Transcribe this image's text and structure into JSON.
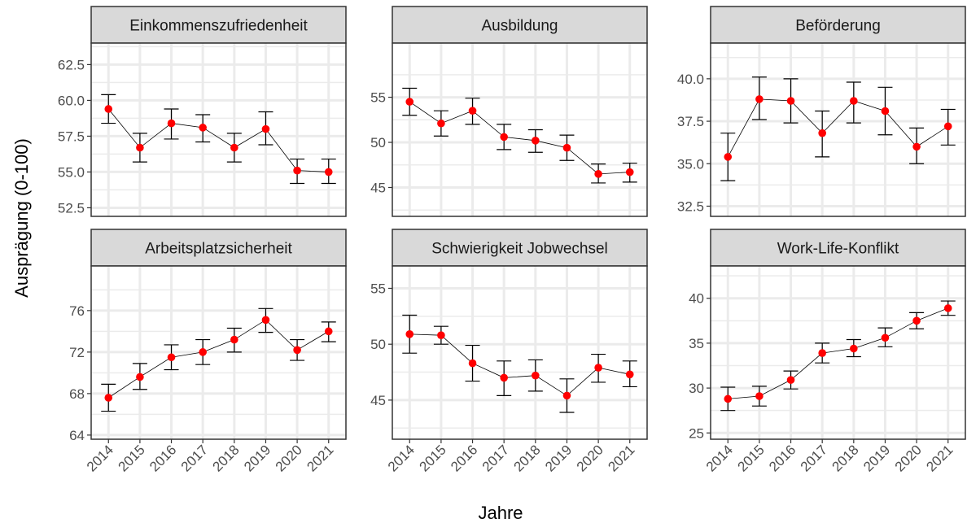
{
  "axes": {
    "x_title": "Jahre",
    "y_title": "Ausprägung (0-100)"
  },
  "colors": {
    "point": "#ff0000",
    "line": "#000000",
    "strip_bg": "#d9d9d9",
    "grid": "#ebebeb",
    "border": "#333333"
  },
  "chart_data": [
    {
      "type": "line",
      "title": "Einkommenszufriedenheit",
      "x": [
        "2014",
        "2015",
        "2016",
        "2017",
        "2018",
        "2019",
        "2020",
        "2021"
      ],
      "y": [
        59.4,
        56.7,
        58.4,
        58.1,
        56.7,
        58.0,
        55.1,
        55.0
      ],
      "y_low": [
        58.4,
        55.7,
        57.3,
        57.1,
        55.7,
        56.9,
        54.2,
        54.2
      ],
      "y_high": [
        60.4,
        57.7,
        59.4,
        59.0,
        57.7,
        59.2,
        55.9,
        55.9
      ],
      "yticks": [
        52.5,
        55.0,
        57.5,
        60.0,
        62.5
      ],
      "ytick_labels": [
        "52.5",
        "55.0",
        "57.5",
        "60.0",
        "62.5"
      ],
      "ylim": [
        51.9,
        64.0
      ],
      "grid": true
    },
    {
      "type": "line",
      "title": "Ausbildung",
      "x": [
        "2014",
        "2015",
        "2016",
        "2017",
        "2018",
        "2019",
        "2020",
        "2021"
      ],
      "y": [
        54.5,
        52.1,
        53.5,
        50.6,
        50.2,
        49.4,
        46.5,
        46.7
      ],
      "y_low": [
        53.0,
        50.7,
        52.0,
        49.2,
        48.9,
        48.0,
        45.5,
        45.6
      ],
      "y_high": [
        56.0,
        53.5,
        54.9,
        52.0,
        51.4,
        50.8,
        47.6,
        47.7
      ],
      "yticks": [
        45,
        50,
        55
      ],
      "ytick_labels": [
        "45",
        "50",
        "55"
      ],
      "ylim": [
        41.8,
        61.0
      ],
      "grid": true
    },
    {
      "type": "line",
      "title": "Beförderung",
      "x": [
        "2014",
        "2015",
        "2016",
        "2017",
        "2018",
        "2019",
        "2020",
        "2021"
      ],
      "y": [
        35.4,
        38.8,
        38.7,
        36.8,
        38.7,
        38.1,
        36.0,
        37.2
      ],
      "y_low": [
        34.0,
        37.6,
        37.4,
        35.4,
        37.4,
        36.7,
        35.0,
        36.1
      ],
      "y_high": [
        36.8,
        40.1,
        40.0,
        38.1,
        39.8,
        39.5,
        37.1,
        38.2
      ],
      "yticks": [
        32.5,
        35.0,
        37.5,
        40.0
      ],
      "ytick_labels": [
        "32.5",
        "35.0",
        "37.5",
        "40.0"
      ],
      "ylim": [
        31.9,
        42.1
      ],
      "grid": true
    },
    {
      "type": "line",
      "title": "Arbeitsplatzsicherheit",
      "x": [
        "2014",
        "2015",
        "2016",
        "2017",
        "2018",
        "2019",
        "2020",
        "2021"
      ],
      "y": [
        67.6,
        69.6,
        71.5,
        72.0,
        73.2,
        75.1,
        72.2,
        74.0
      ],
      "y_low": [
        66.3,
        68.4,
        70.3,
        70.8,
        72.0,
        73.9,
        71.2,
        73.0
      ],
      "y_high": [
        68.9,
        70.9,
        72.7,
        73.2,
        74.3,
        76.2,
        73.2,
        74.9
      ],
      "yticks": [
        64,
        68,
        72,
        76
      ],
      "ytick_labels": [
        "64",
        "68",
        "72",
        "76"
      ],
      "ylim": [
        63.6,
        80.3
      ],
      "grid": true
    },
    {
      "type": "line",
      "title": "Schwierigkeit Jobwechsel",
      "x": [
        "2014",
        "2015",
        "2016",
        "2017",
        "2018",
        "2019",
        "2020",
        "2021"
      ],
      "y": [
        50.9,
        50.8,
        48.3,
        47.0,
        47.2,
        45.4,
        47.9,
        47.3
      ],
      "y_low": [
        49.2,
        50.0,
        46.7,
        45.4,
        45.8,
        43.9,
        46.6,
        46.2
      ],
      "y_high": [
        52.6,
        51.6,
        49.9,
        48.5,
        48.6,
        46.9,
        49.1,
        48.5
      ],
      "yticks": [
        45,
        50,
        55
      ],
      "ytick_labels": [
        "45",
        "50",
        "55"
      ],
      "ylim": [
        41.5,
        57.0
      ],
      "grid": true
    },
    {
      "type": "line",
      "title": "Work-Life-Konflikt",
      "x": [
        "2014",
        "2015",
        "2016",
        "2017",
        "2018",
        "2019",
        "2020",
        "2021"
      ],
      "y": [
        28.8,
        29.1,
        30.9,
        33.9,
        34.4,
        35.6,
        37.5,
        38.9
      ],
      "y_low": [
        27.5,
        28.0,
        29.9,
        32.8,
        33.5,
        34.6,
        36.6,
        38.1
      ],
      "y_high": [
        30.1,
        30.2,
        31.9,
        35.0,
        35.4,
        36.7,
        38.4,
        39.7
      ],
      "yticks": [
        25,
        30,
        35,
        40
      ],
      "ytick_labels": [
        "25",
        "30",
        "35",
        "40"
      ],
      "ylim": [
        24.3,
        43.6
      ],
      "grid": true
    }
  ]
}
